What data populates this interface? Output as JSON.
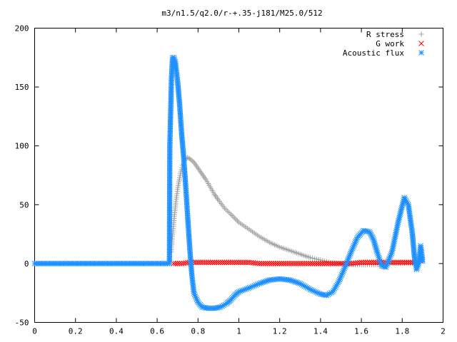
{
  "chart_data": {
    "type": "scatter",
    "title": "m3/n1.5/q2.0/r-+.35-j181/M25.0/512",
    "xlabel": "",
    "ylabel": "",
    "xlim": [
      0,
      2
    ],
    "ylim": [
      -50,
      200
    ],
    "xticks": [
      "0",
      "0.2",
      "0.4",
      "0.6",
      "0.8",
      "1",
      "1.2",
      "1.4",
      "1.6",
      "1.8",
      "2"
    ],
    "yticks": [
      "-50",
      "0",
      "50",
      "100",
      "150",
      "200"
    ],
    "grid": false,
    "legend_position": "top-right",
    "series": [
      {
        "name": "R stress",
        "marker": "plus",
        "color": "#a0a0a0",
        "points": [
          [
            0.668,
            10
          ],
          [
            0.676,
            25
          ],
          [
            0.684,
            40
          ],
          [
            0.692,
            53
          ],
          [
            0.7,
            63
          ],
          [
            0.708,
            71
          ],
          [
            0.716,
            78
          ],
          [
            0.724,
            83
          ],
          [
            0.732,
            87
          ],
          [
            0.74,
            89
          ],
          [
            0.748,
            90
          ],
          [
            0.76,
            89
          ],
          [
            0.78,
            86
          ],
          [
            0.8,
            81
          ],
          [
            0.82,
            76
          ],
          [
            0.84,
            71
          ],
          [
            0.86,
            65
          ],
          [
            0.88,
            59
          ],
          [
            0.9,
            54
          ],
          [
            0.93,
            47
          ],
          [
            0.96,
            42
          ],
          [
            1.0,
            35
          ],
          [
            1.05,
            29
          ],
          [
            1.1,
            23
          ],
          [
            1.15,
            18
          ],
          [
            1.2,
            14
          ],
          [
            1.25,
            11
          ],
          [
            1.3,
            8
          ],
          [
            1.35,
            5
          ],
          [
            1.4,
            3
          ],
          [
            1.45,
            1
          ],
          [
            1.5,
            0
          ],
          [
            1.55,
            -1
          ],
          [
            1.6,
            -1
          ],
          [
            1.65,
            -1
          ],
          [
            1.7,
            -1
          ],
          [
            1.75,
            0
          ],
          [
            1.8,
            0
          ],
          [
            1.85,
            0
          ],
          [
            1.88,
            0
          ]
        ]
      },
      {
        "name": "G work",
        "marker": "cross",
        "color": "#ff0000",
        "points": [
          [
            0.68,
            0
          ],
          [
            0.72,
            0
          ],
          [
            0.76,
            1
          ],
          [
            0.8,
            1
          ],
          [
            0.85,
            1
          ],
          [
            0.9,
            1
          ],
          [
            0.95,
            1
          ],
          [
            1.0,
            1
          ],
          [
            1.05,
            1
          ],
          [
            1.1,
            0
          ],
          [
            1.15,
            0
          ],
          [
            1.2,
            0
          ],
          [
            1.25,
            0
          ],
          [
            1.3,
            0
          ],
          [
            1.35,
            0
          ],
          [
            1.4,
            0
          ],
          [
            1.45,
            0
          ],
          [
            1.5,
            0
          ],
          [
            1.55,
            0
          ],
          [
            1.6,
            1
          ],
          [
            1.65,
            1
          ],
          [
            1.7,
            1
          ],
          [
            1.75,
            1
          ],
          [
            1.8,
            1
          ],
          [
            1.85,
            1
          ],
          [
            1.89,
            2
          ]
        ]
      },
      {
        "name": "Acoustic flux",
        "marker": "star",
        "color": "#1e90ff",
        "points": [
          [
            0.0,
            0
          ],
          [
            0.1,
            0
          ],
          [
            0.2,
            0
          ],
          [
            0.3,
            0
          ],
          [
            0.4,
            0
          ],
          [
            0.5,
            0
          ],
          [
            0.6,
            0
          ],
          [
            0.66,
            0
          ],
          [
            0.662,
            100
          ],
          [
            0.67,
            157
          ],
          [
            0.675,
            175
          ],
          [
            0.682,
            175
          ],
          [
            0.69,
            170
          ],
          [
            0.7,
            155
          ],
          [
            0.71,
            135
          ],
          [
            0.72,
            110
          ],
          [
            0.73,
            90
          ],
          [
            0.74,
            65
          ],
          [
            0.75,
            38
          ],
          [
            0.76,
            12
          ],
          [
            0.77,
            -10
          ],
          [
            0.78,
            -25
          ],
          [
            0.8,
            -33
          ],
          [
            0.82,
            -37
          ],
          [
            0.85,
            -38
          ],
          [
            0.88,
            -38
          ],
          [
            0.91,
            -37
          ],
          [
            0.94,
            -34
          ],
          [
            0.96,
            -31
          ],
          [
            0.98,
            -27
          ],
          [
            1.0,
            -24
          ],
          [
            1.03,
            -22
          ],
          [
            1.06,
            -20
          ],
          [
            1.1,
            -17
          ],
          [
            1.15,
            -14
          ],
          [
            1.2,
            -13
          ],
          [
            1.25,
            -14
          ],
          [
            1.3,
            -17
          ],
          [
            1.35,
            -22
          ],
          [
            1.4,
            -26
          ],
          [
            1.43,
            -27
          ],
          [
            1.46,
            -24
          ],
          [
            1.49,
            -15
          ],
          [
            1.52,
            -3
          ],
          [
            1.55,
            10
          ],
          [
            1.58,
            22
          ],
          [
            1.61,
            28
          ],
          [
            1.64,
            27
          ],
          [
            1.66,
            20
          ],
          [
            1.68,
            8
          ],
          [
            1.7,
            -2
          ],
          [
            1.72,
            -3
          ],
          [
            1.75,
            10
          ],
          [
            1.78,
            35
          ],
          [
            1.81,
            56
          ],
          [
            1.83,
            50
          ],
          [
            1.85,
            25
          ],
          [
            1.86,
            5
          ],
          [
            1.87,
            -5
          ],
          [
            1.88,
            0
          ],
          [
            1.89,
            15
          ],
          [
            1.9,
            2
          ]
        ]
      }
    ]
  }
}
